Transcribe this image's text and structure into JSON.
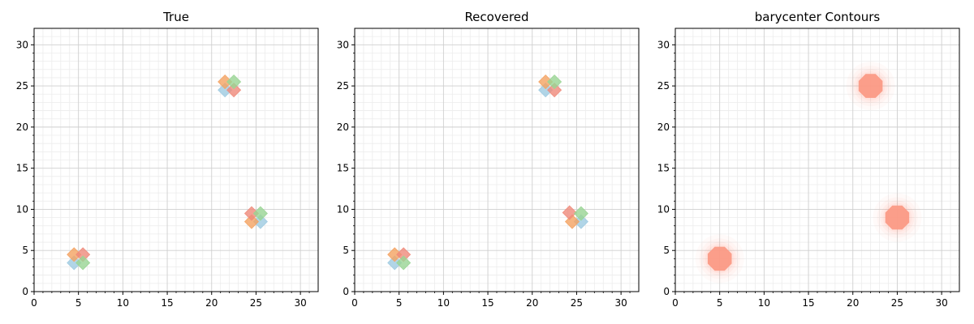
{
  "figure": {
    "background": "#ffffff"
  },
  "chart_data": [
    {
      "type": "scatter",
      "title": "True",
      "xlim": [
        0,
        32
      ],
      "ylim": [
        0,
        32
      ],
      "xticks": [
        "0",
        "5",
        "10",
        "15",
        "20",
        "25",
        "30"
      ],
      "yticks": [
        "0",
        "5",
        "10",
        "15",
        "20",
        "25",
        "30"
      ],
      "grid": true,
      "marker": "diamond",
      "series": [
        {
          "color": "#9ecae1",
          "points": [
            [
              4.5,
              3.5
            ],
            [
              21.5,
              24.5
            ],
            [
              25.5,
              8.5
            ]
          ]
        },
        {
          "color": "#f4a261",
          "points": [
            [
              4.5,
              4.5
            ],
            [
              21.5,
              25.5
            ],
            [
              24.5,
              8.5
            ]
          ]
        },
        {
          "color": "#ef8a7a",
          "points": [
            [
              5.5,
              4.5
            ],
            [
              22.5,
              24.5
            ],
            [
              24.5,
              9.5
            ]
          ]
        },
        {
          "color": "#99d594",
          "points": [
            [
              5.5,
              3.5
            ],
            [
              22.5,
              25.5
            ],
            [
              25.5,
              9.5
            ]
          ]
        }
      ]
    },
    {
      "type": "scatter",
      "title": "Recovered",
      "xlim": [
        0,
        32
      ],
      "ylim": [
        0,
        32
      ],
      "xticks": [
        "0",
        "5",
        "10",
        "15",
        "20",
        "25",
        "30"
      ],
      "yticks": [
        "0",
        "5",
        "10",
        "15",
        "20",
        "25",
        "30"
      ],
      "grid": true,
      "marker": "diamond",
      "series": [
        {
          "color": "#9ecae1",
          "points": [
            [
              4.5,
              3.5
            ],
            [
              21.5,
              24.5
            ],
            [
              25.5,
              8.5
            ]
          ]
        },
        {
          "color": "#f4a261",
          "points": [
            [
              4.5,
              4.5
            ],
            [
              21.5,
              25.5
            ],
            [
              24.5,
              8.5
            ]
          ]
        },
        {
          "color": "#ef8a7a",
          "points": [
            [
              5.5,
              4.5
            ],
            [
              22.5,
              24.5
            ],
            [
              24.2,
              9.6
            ]
          ]
        },
        {
          "color": "#99d594",
          "points": [
            [
              5.5,
              3.5
            ],
            [
              22.5,
              25.5
            ],
            [
              25.5,
              9.5
            ]
          ]
        }
      ]
    },
    {
      "type": "contour",
      "title": "barycenter Contours",
      "xlim": [
        0,
        32
      ],
      "ylim": [
        0,
        32
      ],
      "xticks": [
        "0",
        "5",
        "10",
        "15",
        "20",
        "25",
        "30"
      ],
      "yticks": [
        "0",
        "5",
        "10",
        "15",
        "20",
        "25",
        "30"
      ],
      "grid": true,
      "color": "#fb9a85",
      "centers": [
        [
          5,
          4
        ],
        [
          22,
          25
        ],
        [
          25,
          9
        ]
      ]
    }
  ]
}
